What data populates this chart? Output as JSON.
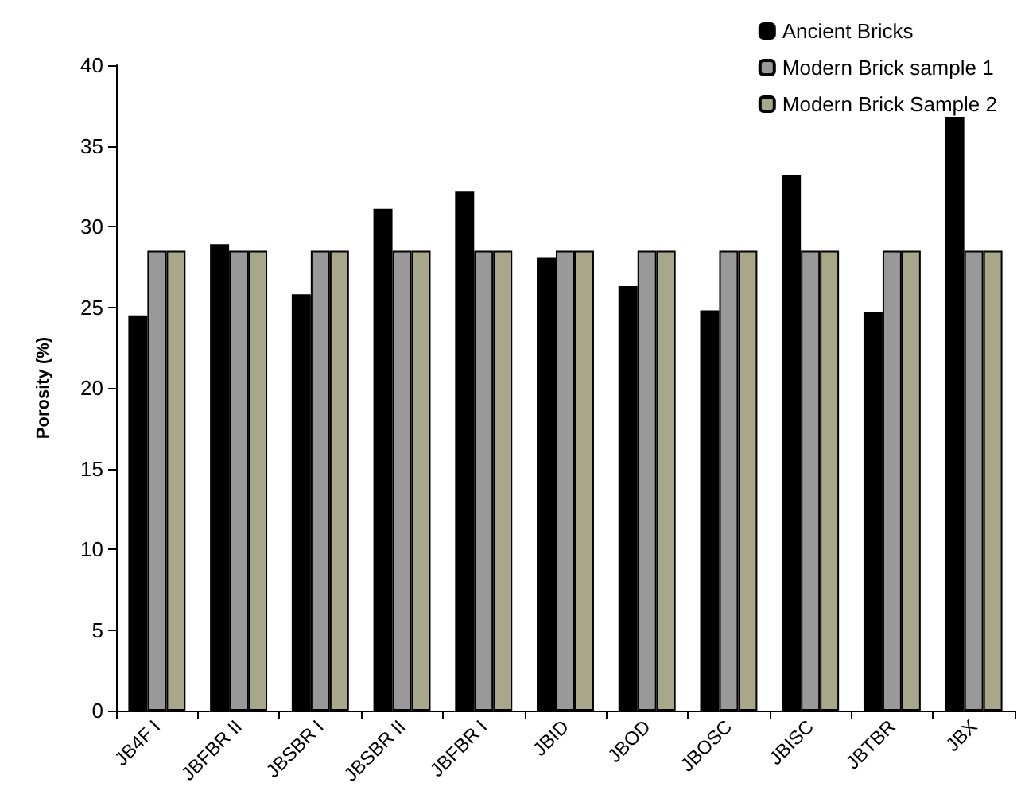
{
  "chart_data": {
    "type": "bar",
    "ylabel": "Porosity (%)",
    "categories": [
      "JB4F I",
      "JBFBR II",
      "JBSBR I",
      "JBSBR II",
      "JBFBR I",
      "JBID",
      "JBOD",
      "JBOSC",
      "JBISC",
      "JBTBR",
      "JBX"
    ],
    "series": [
      {
        "name": "Ancient Bricks",
        "color": "#000000",
        "values": [
          24.5,
          28.9,
          25.8,
          31.1,
          32.2,
          28.1,
          26.3,
          24.8,
          33.2,
          24.7,
          36.8
        ]
      },
      {
        "name": "Modern Brick sample 1",
        "color": "#999999",
        "values": [
          28.5,
          28.5,
          28.5,
          28.5,
          28.5,
          28.5,
          28.5,
          28.5,
          28.5,
          28.5,
          28.5
        ]
      },
      {
        "name": "Modern Brick Sample 2",
        "color": "#a9a78a",
        "values": [
          28.5,
          28.5,
          28.5,
          28.5,
          28.5,
          28.5,
          28.5,
          28.5,
          28.5,
          28.5,
          28.5
        ]
      }
    ],
    "ylim": [
      0,
      40
    ],
    "yticks": [
      0,
      5,
      10,
      15,
      20,
      25,
      30,
      35,
      40
    ],
    "grid": false,
    "legend": "top right"
  }
}
